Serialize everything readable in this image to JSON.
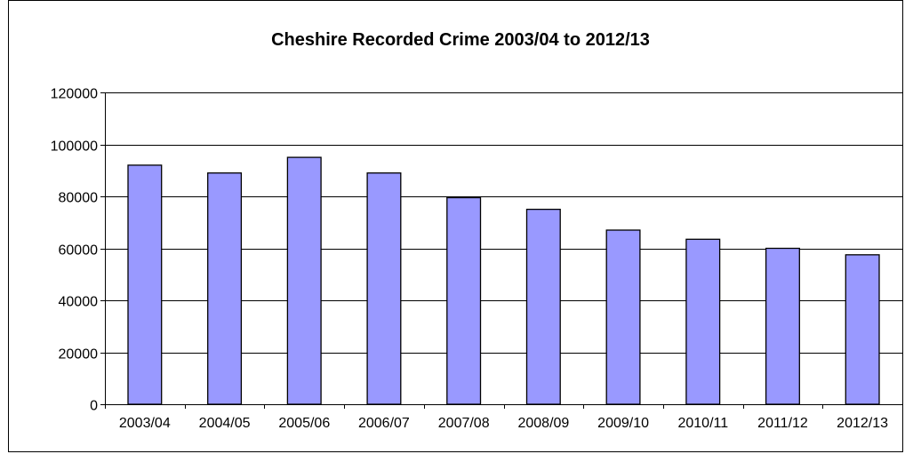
{
  "chart_data": {
    "type": "bar",
    "title": "Cheshire Recorded Crime 2003/04 to 2012/13",
    "xlabel": "",
    "ylabel": "",
    "categories": [
      "2003/04",
      "2004/05",
      "2005/06",
      "2006/07",
      "2007/08",
      "2008/09",
      "2009/10",
      "2010/11",
      "2011/12",
      "2012/13"
    ],
    "values": [
      92000,
      89000,
      95000,
      89000,
      79500,
      75000,
      67000,
      63500,
      60000,
      57500
    ],
    "ylim": [
      0,
      120000
    ],
    "yticks": [
      "0",
      "20000",
      "40000",
      "60000",
      "80000",
      "100000",
      "120000"
    ],
    "grid": true,
    "legend": "none",
    "colors": {
      "bar_fill": "#9999FF",
      "bar_stroke": "#000000",
      "grid": "#000000",
      "plot_background": "#FFFFFF"
    }
  }
}
